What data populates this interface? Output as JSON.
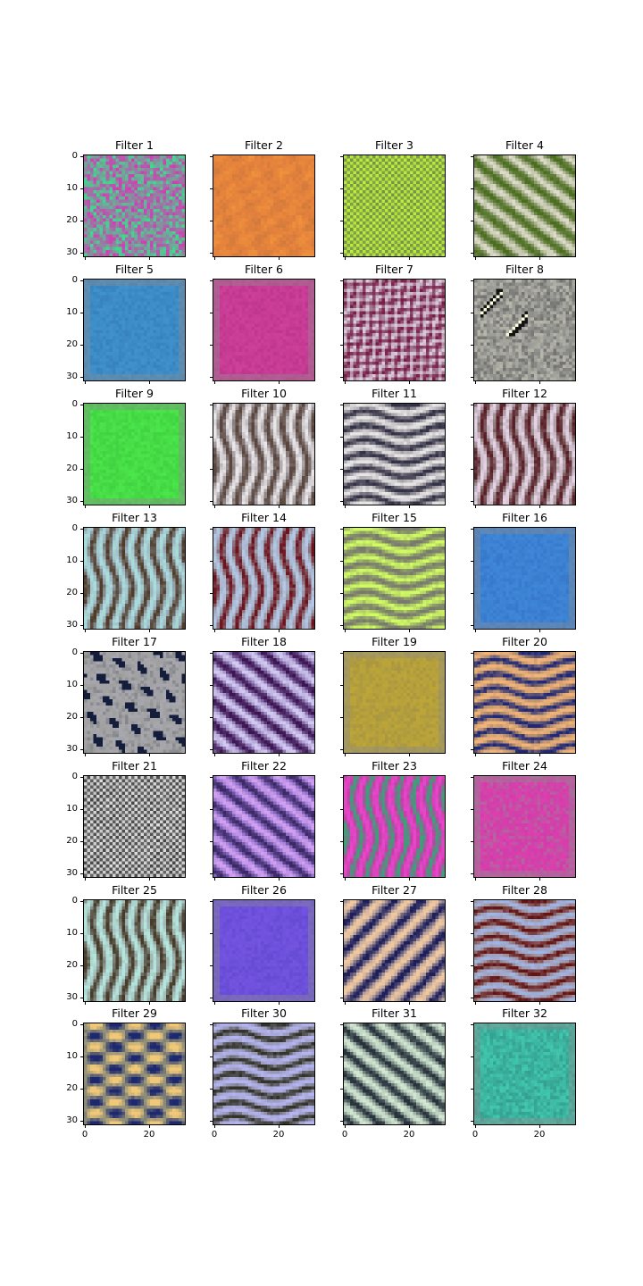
{
  "chart_data": {
    "type": "heatmap",
    "description_grid": "8 rows x 4 columns of 32x32 RGB filter visualizations",
    "panels": [
      {
        "title": "Filter 1",
        "pattern": "noise",
        "base": "#8a8aa0",
        "c1": "#d23cb4",
        "c2": "#3cdc8c"
      },
      {
        "title": "Filter 2",
        "pattern": "blotch",
        "base": "#e6823c",
        "c1": "#f0963c",
        "c2": "#c8783c"
      },
      {
        "title": "Filter 3",
        "pattern": "checker",
        "base": "#9ac83c",
        "c1": "#c8f03c",
        "c2": "#6e8c50"
      },
      {
        "title": "Filter 4",
        "pattern": "diag",
        "base": "#8c9a6e",
        "c1": "#dcdcc8",
        "c2": "#4a6e1e"
      },
      {
        "title": "Filter 5",
        "pattern": "flat",
        "base": "#3c8cc8",
        "c1": "#4696d2",
        "c2": "#3278b4"
      },
      {
        "title": "Filter 6",
        "pattern": "flat",
        "base": "#c83c96",
        "c1": "#d246a0",
        "c2": "#b43282"
      },
      {
        "title": "Filter 7",
        "pattern": "checkdiag",
        "base": "#a07890",
        "c1": "#dcc8dc",
        "c2": "#7a1e46"
      },
      {
        "title": "Filter 8",
        "pattern": "blobs8",
        "base": "#9a9a96",
        "c1": "#fafadc",
        "c2": "#141414"
      },
      {
        "title": "Filter 9",
        "pattern": "flat",
        "base": "#46dc46",
        "c1": "#50f050",
        "c2": "#3cc83c"
      },
      {
        "title": "Filter 10",
        "pattern": "vert",
        "base": "#a09aa0",
        "c1": "#eae6e6",
        "c2": "#5a463c"
      },
      {
        "title": "Filter 11",
        "pattern": "horiz",
        "base": "#a09aa0",
        "c1": "#e6e6e6",
        "c2": "#323246"
      },
      {
        "title": "Filter 12",
        "pattern": "vert",
        "base": "#9a8c8c",
        "c1": "#e6d2e6",
        "c2": "#5a1e28"
      },
      {
        "title": "Filter 13",
        "pattern": "vert",
        "base": "#96a8b4",
        "c1": "#aadcdc",
        "c2": "#503c28"
      },
      {
        "title": "Filter 14",
        "pattern": "vert",
        "base": "#9a9aa8",
        "c1": "#b4c8e6",
        "c2": "#6e141e"
      },
      {
        "title": "Filter 15",
        "pattern": "horiz",
        "base": "#9ab464",
        "c1": "#d2fa64",
        "c2": "#78786e"
      },
      {
        "title": "Filter 16",
        "pattern": "flat",
        "base": "#3c82d2",
        "c1": "#468cdc",
        "c2": "#326ec8"
      },
      {
        "title": "Filter 17",
        "pattern": "blobs17",
        "base": "#a0a0a0",
        "c1": "#b4b4c8",
        "c2": "#141e3c"
      },
      {
        "title": "Filter 18",
        "pattern": "diag",
        "base": "#8c78b4",
        "c1": "#d2c8f0",
        "c2": "#3c1450"
      },
      {
        "title": "Filter 19",
        "pattern": "flat",
        "base": "#b4a03c",
        "c1": "#c8aa32",
        "c2": "#a08c46"
      },
      {
        "title": "Filter 20",
        "pattern": "horiz",
        "base": "#b48c6e",
        "c1": "#f0b478",
        "c2": "#1e2878"
      },
      {
        "title": "Filter 21",
        "pattern": "checker",
        "base": "#969696",
        "c1": "#e6e6e6",
        "c2": "#3c3c3c"
      },
      {
        "title": "Filter 22",
        "pattern": "diag",
        "base": "#8c6ec8",
        "c1": "#d2a0f0",
        "c2": "#3c2864"
      },
      {
        "title": "Filter 23",
        "pattern": "vert",
        "base": "#c83caa",
        "c1": "#e646c8",
        "c2": "#3ca078"
      },
      {
        "title": "Filter 24",
        "pattern": "flat",
        "base": "#d23caa",
        "c1": "#e646b4",
        "c2": "#9a8c96"
      },
      {
        "title": "Filter 25",
        "pattern": "vert",
        "base": "#9aaaaa",
        "c1": "#b4e6dc",
        "c2": "#463c28"
      },
      {
        "title": "Filter 26",
        "pattern": "flat",
        "base": "#6e50dc",
        "c1": "#7a5ae6",
        "c2": "#5a46c8"
      },
      {
        "title": "Filter 27",
        "pattern": "diag2",
        "base": "#a09096",
        "c1": "#f0c8a0",
        "c2": "#1e1e5a"
      },
      {
        "title": "Filter 28",
        "pattern": "horiz",
        "base": "#a09096",
        "c1": "#a0b4e6",
        "c2": "#641414"
      },
      {
        "title": "Filter 29",
        "pattern": "cross",
        "base": "#8c8c78",
        "c1": "#f0c878",
        "c2": "#1e286e"
      },
      {
        "title": "Filter 30",
        "pattern": "horiz",
        "base": "#9696b4",
        "c1": "#b4b4f0",
        "c2": "#323228"
      },
      {
        "title": "Filter 31",
        "pattern": "diag",
        "base": "#8ca096",
        "c1": "#d2e6d2",
        "c2": "#28323c"
      },
      {
        "title": "Filter 32",
        "pattern": "flat",
        "base": "#3cb4a0",
        "c1": "#46dcbe",
        "c2": "#2d8c82"
      }
    ],
    "y_tick_labels": [
      "0",
      "10",
      "20",
      "30"
    ],
    "x_tick_labels": [
      "0",
      "20"
    ],
    "y_ticks": [
      0,
      10,
      20,
      30
    ],
    "x_ticks": [
      0,
      20
    ],
    "xlim": [
      -0.5,
      31.5
    ],
    "ylim": [
      31.5,
      -0.5
    ]
  }
}
